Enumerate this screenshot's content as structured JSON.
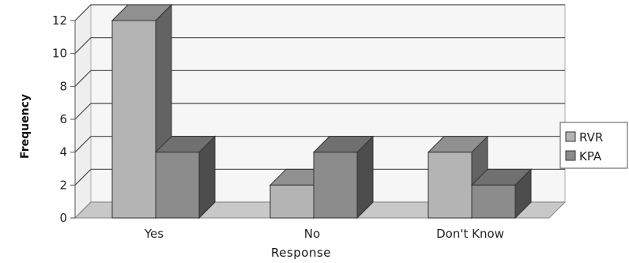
{
  "chart_data": {
    "type": "bar",
    "three_d": true,
    "categories": [
      "Yes",
      "No",
      "Don't Know"
    ],
    "series": [
      {
        "name": "RVR",
        "values": [
          12,
          2,
          4
        ],
        "color": "#b4b4b4"
      },
      {
        "name": "KPA",
        "values": [
          4,
          4,
          2
        ],
        "color": "#8c8c8c"
      }
    ],
    "title": "",
    "xlabel": "Response",
    "ylabel": "Frequency",
    "ylim": [
      0,
      12
    ],
    "yticks": [
      0,
      2,
      4,
      6,
      8,
      10,
      12
    ],
    "grid": true,
    "legend_position": "right"
  }
}
